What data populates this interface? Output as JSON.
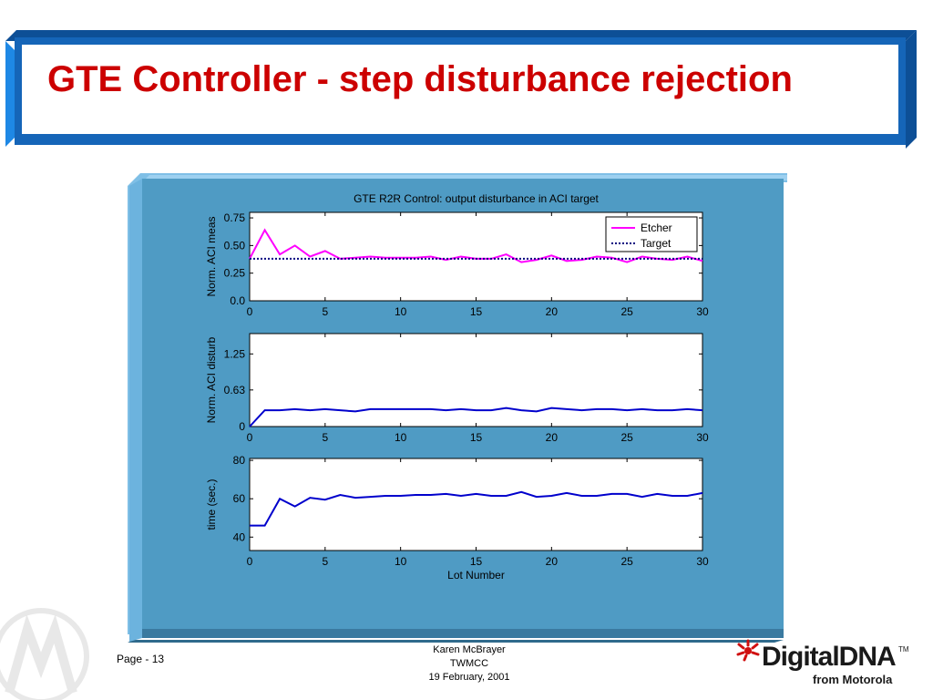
{
  "slide": {
    "title": "GTE Controller - step disturbance rejection",
    "page_label": "Page - 13",
    "footer_lines": [
      "Karen McBrayer",
      "TWMCC",
      "19 February, 2001"
    ],
    "logo_main": "DigitalDNA",
    "logo_tm": "TM",
    "logo_sub": "from Motorola"
  },
  "colors": {
    "title": "#cc0000",
    "banner_blue": "#1565b8",
    "panel_bg": "#4f9bc4",
    "etcher": "#ff00ff",
    "target": "#000080",
    "series_blue": "#0000cc"
  },
  "chart_data": [
    {
      "type": "line",
      "title": "GTE R2R Control: output disturbance in ACI target",
      "xlabel": "",
      "ylabel": "Norm. ACI meas",
      "xlim": [
        0,
        30
      ],
      "ylim": [
        0,
        0.8
      ],
      "xticks": [
        "0",
        "5",
        "10",
        "15",
        "20",
        "25",
        "30"
      ],
      "yticks": [
        "0.0",
        "0.25",
        "0.50",
        "0.75"
      ],
      "ytick_values": [
        0,
        0.25,
        0.5,
        0.75
      ],
      "legend": "top-right",
      "series": [
        {
          "name": "Etcher",
          "x": [
            0,
            1,
            2,
            3,
            4,
            5,
            6,
            7,
            8,
            9,
            10,
            11,
            12,
            13,
            14,
            15,
            16,
            17,
            18,
            19,
            20,
            21,
            22,
            23,
            24,
            25,
            26,
            27,
            28,
            29,
            30
          ],
          "values": [
            0.38,
            0.64,
            0.42,
            0.5,
            0.4,
            0.45,
            0.38,
            0.39,
            0.4,
            0.39,
            0.39,
            0.39,
            0.4,
            0.37,
            0.4,
            0.38,
            0.38,
            0.42,
            0.35,
            0.37,
            0.41,
            0.36,
            0.37,
            0.4,
            0.39,
            0.35,
            0.4,
            0.38,
            0.37,
            0.4,
            0.36
          ]
        },
        {
          "name": "Target",
          "x": [
            0,
            30
          ],
          "values": [
            0.38,
            0.38
          ],
          "style": "dotted"
        }
      ]
    },
    {
      "type": "line",
      "title": "",
      "xlabel": "",
      "ylabel": "Norm. ACI disturb",
      "xlim": [
        0,
        30
      ],
      "ylim": [
        0,
        1.6
      ],
      "xticks": [
        "0",
        "5",
        "10",
        "15",
        "20",
        "25",
        "30"
      ],
      "yticks": [
        "0",
        "0.63",
        "1.25"
      ],
      "ytick_values": [
        0,
        0.63,
        1.25
      ],
      "series": [
        {
          "x": [
            0,
            1,
            2,
            3,
            4,
            5,
            6,
            7,
            8,
            9,
            10,
            11,
            12,
            13,
            14,
            15,
            16,
            17,
            18,
            19,
            20,
            21,
            22,
            23,
            24,
            25,
            26,
            27,
            28,
            29,
            30
          ],
          "values": [
            0,
            0.28,
            0.28,
            0.3,
            0.28,
            0.3,
            0.28,
            0.26,
            0.3,
            0.3,
            0.3,
            0.3,
            0.3,
            0.28,
            0.3,
            0.28,
            0.28,
            0.32,
            0.28,
            0.26,
            0.32,
            0.3,
            0.28,
            0.3,
            0.3,
            0.28,
            0.3,
            0.28,
            0.28,
            0.3,
            0.28
          ]
        }
      ]
    },
    {
      "type": "line",
      "title": "",
      "xlabel": "Lot Number",
      "ylabel": "time (sec.)",
      "xlim": [
        0,
        30
      ],
      "ylim": [
        33,
        81
      ],
      "xticks": [
        "0",
        "5",
        "10",
        "15",
        "20",
        "25",
        "30"
      ],
      "yticks": [
        "40",
        "60",
        "80"
      ],
      "ytick_values": [
        40,
        60,
        80
      ],
      "series": [
        {
          "x": [
            0,
            1,
            2,
            3,
            4,
            5,
            6,
            7,
            8,
            9,
            10,
            11,
            12,
            13,
            14,
            15,
            16,
            17,
            18,
            19,
            20,
            21,
            22,
            23,
            24,
            25,
            26,
            27,
            28,
            29,
            30
          ],
          "values": [
            46,
            46,
            60,
            56,
            60.5,
            59.5,
            62,
            60.5,
            61,
            61.5,
            61.5,
            62,
            62,
            62.5,
            61.5,
            62.5,
            61.5,
            61.5,
            63.5,
            61,
            61.5,
            63,
            61.5,
            61.5,
            62.5,
            62.5,
            61,
            62.5,
            61.5,
            61.5,
            63
          ]
        }
      ]
    }
  ]
}
